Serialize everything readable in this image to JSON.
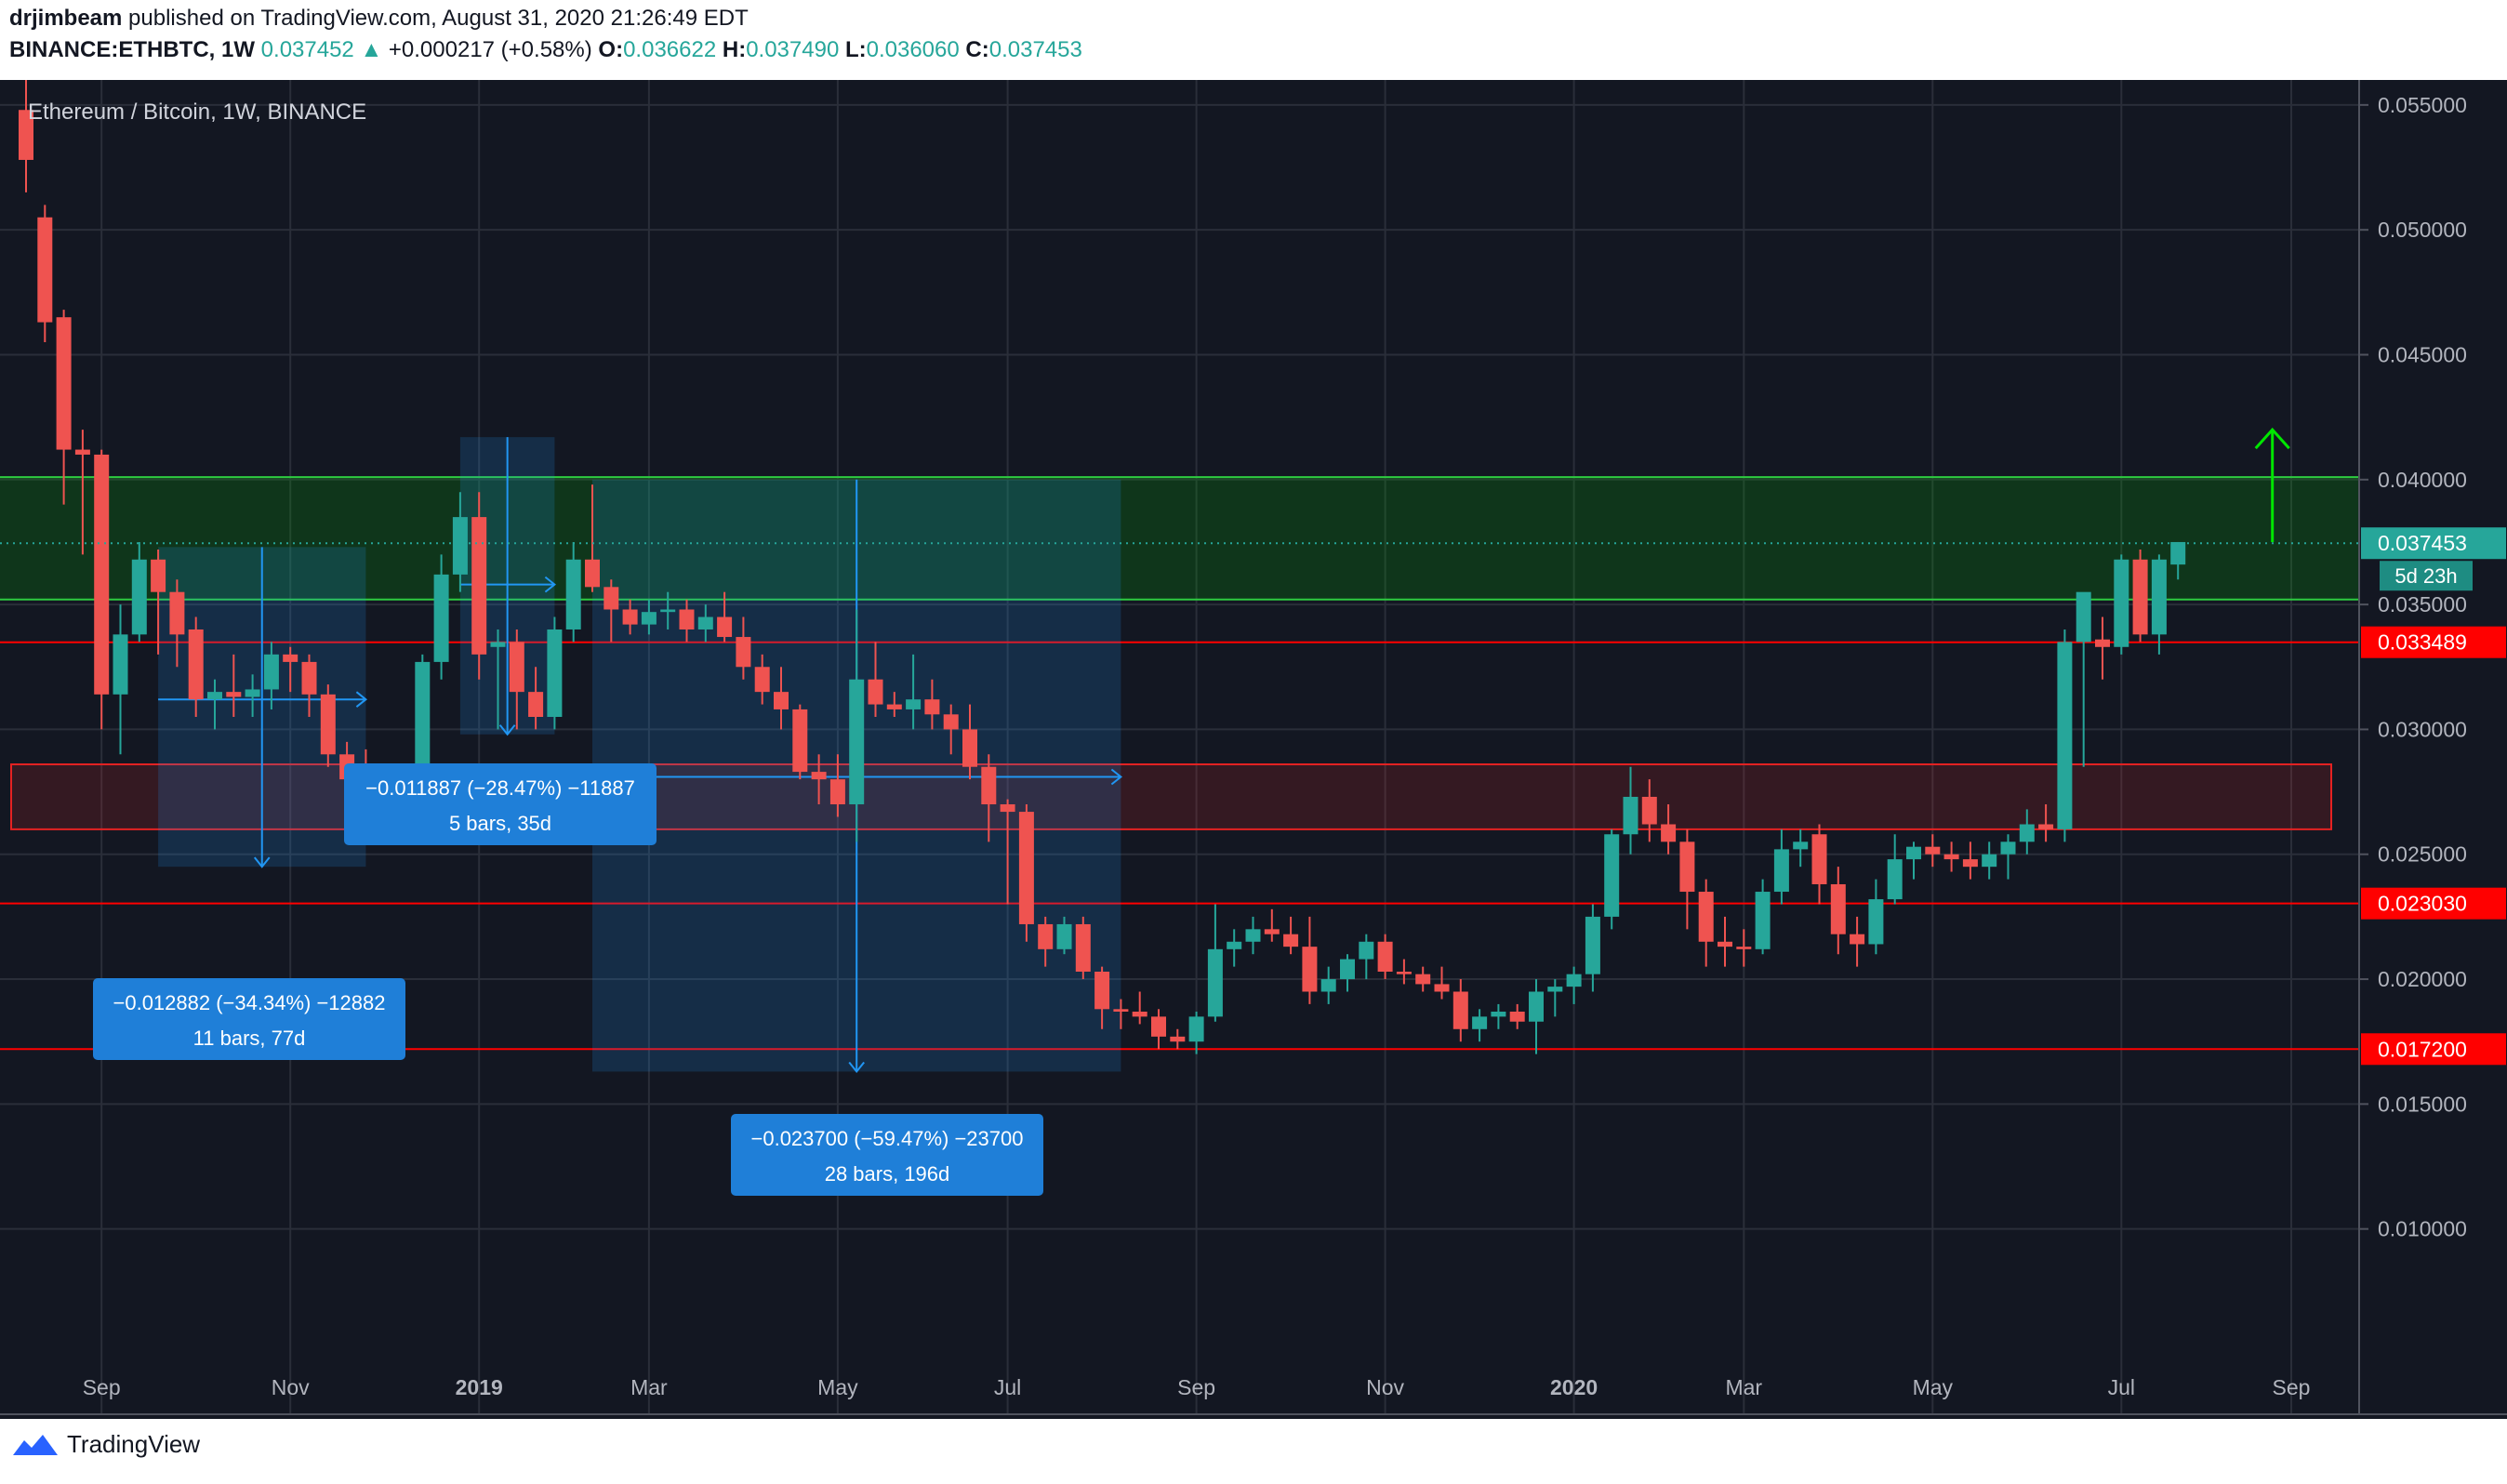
{
  "header": {
    "author": "drjimbeam",
    "published": "published on TradingView.com, August 31, 2020 21:26:49 EDT",
    "symbol": "BINANCE:ETHBTC, 1W",
    "last": "0.037452",
    "change": "+0.000217 (+0.58%)",
    "o_label": "O:",
    "o": "0.036622",
    "h_label": "H:",
    "h": "0.037490",
    "l_label": "L:",
    "l": "0.036060",
    "c_label": "C:",
    "c": "0.037453"
  },
  "legend_title": "Ethereum / Bitcoin, 1W, BINANCE",
  "brand": "TradingView",
  "colors": {
    "bg": "#131722",
    "up": "#26a69a",
    "down": "#ef5350",
    "support": "#ff0000",
    "zone": "#00c800",
    "measure": "#2196f3"
  },
  "chart_data": {
    "type": "candlestick",
    "title": "Ethereum / Bitcoin, 1W, BINANCE",
    "ylim": [
      0.005,
      0.056
    ],
    "y_ticks": [
      "0.055000",
      "0.050000",
      "0.045000",
      "0.040000",
      "0.035000",
      "0.030000",
      "0.025000",
      "0.020000",
      "0.015000",
      "0.010000"
    ],
    "y_tick_values": [
      0.055,
      0.05,
      0.045,
      0.04,
      0.035,
      0.03,
      0.025,
      0.02,
      0.015,
      0.01
    ],
    "x_ticks": [
      {
        "label": "Sep",
        "bar": 4
      },
      {
        "label": "Nov",
        "bar": 14
      },
      {
        "label": "2019",
        "bar": 24
      },
      {
        "label": "Mar",
        "bar": 33
      },
      {
        "label": "May",
        "bar": 43
      },
      {
        "label": "Jul",
        "bar": 52
      },
      {
        "label": "Sep",
        "bar": 62
      },
      {
        "label": "Nov",
        "bar": 72
      },
      {
        "label": "2020",
        "bar": 82
      },
      {
        "label": "Mar",
        "bar": 91
      },
      {
        "label": "May",
        "bar": 101
      },
      {
        "label": "Jul",
        "bar": 111
      },
      {
        "label": "Sep",
        "bar": 120
      }
    ],
    "candles": [
      [
        0.0548,
        0.057,
        0.0515,
        0.0528
      ],
      [
        0.0505,
        0.051,
        0.0455,
        0.0463
      ],
      [
        0.0465,
        0.0468,
        0.039,
        0.0412
      ],
      [
        0.0412,
        0.042,
        0.037,
        0.041
      ],
      [
        0.041,
        0.0412,
        0.03,
        0.0314
      ],
      [
        0.0314,
        0.035,
        0.029,
        0.0338
      ],
      [
        0.0338,
        0.0375,
        0.0335,
        0.0368
      ],
      [
        0.0368,
        0.0372,
        0.033,
        0.0355
      ],
      [
        0.0355,
        0.036,
        0.0325,
        0.0338
      ],
      [
        0.034,
        0.0345,
        0.0305,
        0.0312
      ],
      [
        0.0312,
        0.032,
        0.03,
        0.0315
      ],
      [
        0.0315,
        0.033,
        0.0305,
        0.0313
      ],
      [
        0.0313,
        0.0322,
        0.0305,
        0.0316
      ],
      [
        0.0316,
        0.0335,
        0.0308,
        0.033
      ],
      [
        0.033,
        0.0333,
        0.0315,
        0.0327
      ],
      [
        0.0327,
        0.033,
        0.0305,
        0.0314
      ],
      [
        0.0314,
        0.0318,
        0.0285,
        0.029
      ],
      [
        0.029,
        0.0295,
        0.027,
        0.028
      ],
      [
        0.0285,
        0.0292,
        0.027,
        0.0275
      ],
      [
        0.0275,
        0.028,
        0.0255,
        0.0262
      ],
      [
        0.0262,
        0.0275,
        0.0255,
        0.027
      ],
      [
        0.027,
        0.033,
        0.0265,
        0.0327
      ],
      [
        0.0327,
        0.037,
        0.032,
        0.0362
      ],
      [
        0.0362,
        0.0395,
        0.0355,
        0.0385
      ],
      [
        0.0385,
        0.0395,
        0.032,
        0.033
      ],
      [
        0.0333,
        0.034,
        0.03,
        0.0335
      ],
      [
        0.0335,
        0.034,
        0.03,
        0.0315
      ],
      [
        0.0315,
        0.0325,
        0.03,
        0.0305
      ],
      [
        0.0305,
        0.0345,
        0.03,
        0.034
      ],
      [
        0.034,
        0.0375,
        0.0335,
        0.0368
      ],
      [
        0.0368,
        0.0398,
        0.0355,
        0.0357
      ],
      [
        0.0357,
        0.036,
        0.0335,
        0.0348
      ],
      [
        0.0348,
        0.0352,
        0.0338,
        0.0342
      ],
      [
        0.0342,
        0.0352,
        0.0338,
        0.0347
      ],
      [
        0.0347,
        0.0355,
        0.034,
        0.0348
      ],
      [
        0.0348,
        0.0352,
        0.0335,
        0.034
      ],
      [
        0.034,
        0.035,
        0.0335,
        0.0345
      ],
      [
        0.0345,
        0.0355,
        0.0335,
        0.0337
      ],
      [
        0.0337,
        0.0345,
        0.032,
        0.0325
      ],
      [
        0.0325,
        0.033,
        0.031,
        0.0315
      ],
      [
        0.0315,
        0.0325,
        0.03,
        0.0308
      ],
      [
        0.0308,
        0.031,
        0.028,
        0.0283
      ],
      [
        0.0283,
        0.029,
        0.027,
        0.028
      ],
      [
        0.028,
        0.029,
        0.0265,
        0.027
      ],
      [
        0.027,
        0.0348,
        0.0255,
        0.032
      ],
      [
        0.032,
        0.0335,
        0.0305,
        0.031
      ],
      [
        0.031,
        0.0315,
        0.0305,
        0.0308
      ],
      [
        0.0308,
        0.033,
        0.03,
        0.0312
      ],
      [
        0.0312,
        0.032,
        0.03,
        0.0306
      ],
      [
        0.0306,
        0.031,
        0.029,
        0.03
      ],
      [
        0.03,
        0.031,
        0.028,
        0.0285
      ],
      [
        0.0285,
        0.029,
        0.0255,
        0.027
      ],
      [
        0.027,
        0.0272,
        0.023,
        0.0267
      ],
      [
        0.0267,
        0.027,
        0.0215,
        0.0222
      ],
      [
        0.0222,
        0.0225,
        0.0205,
        0.0212
      ],
      [
        0.0212,
        0.0225,
        0.021,
        0.0222
      ],
      [
        0.0222,
        0.0225,
        0.02,
        0.0203
      ],
      [
        0.0203,
        0.0205,
        0.018,
        0.0188
      ],
      [
        0.0188,
        0.0192,
        0.018,
        0.0187
      ],
      [
        0.0187,
        0.0195,
        0.0182,
        0.0185
      ],
      [
        0.0185,
        0.0188,
        0.0172,
        0.0177
      ],
      [
        0.0177,
        0.018,
        0.0172,
        0.0175
      ],
      [
        0.0175,
        0.0187,
        0.017,
        0.0185
      ],
      [
        0.0185,
        0.023,
        0.0183,
        0.0212
      ],
      [
        0.0212,
        0.022,
        0.0205,
        0.0215
      ],
      [
        0.0215,
        0.0225,
        0.021,
        0.022
      ],
      [
        0.022,
        0.0228,
        0.0215,
        0.0218
      ],
      [
        0.0218,
        0.0225,
        0.021,
        0.0213
      ],
      [
        0.0213,
        0.0225,
        0.019,
        0.0195
      ],
      [
        0.0195,
        0.0205,
        0.019,
        0.02
      ],
      [
        0.02,
        0.021,
        0.0195,
        0.0208
      ],
      [
        0.0208,
        0.0218,
        0.02,
        0.0215
      ],
      [
        0.0215,
        0.0218,
        0.02,
        0.0203
      ],
      [
        0.0203,
        0.0208,
        0.0198,
        0.0202
      ],
      [
        0.0202,
        0.0205,
        0.0195,
        0.0198
      ],
      [
        0.0198,
        0.0205,
        0.0192,
        0.0195
      ],
      [
        0.0195,
        0.02,
        0.0175,
        0.018
      ],
      [
        0.018,
        0.0188,
        0.0175,
        0.0185
      ],
      [
        0.0185,
        0.019,
        0.018,
        0.0187
      ],
      [
        0.0187,
        0.019,
        0.018,
        0.0183
      ],
      [
        0.0183,
        0.02,
        0.017,
        0.0195
      ],
      [
        0.0195,
        0.02,
        0.0185,
        0.0197
      ],
      [
        0.0197,
        0.0205,
        0.019,
        0.0202
      ],
      [
        0.0202,
        0.023,
        0.0195,
        0.0225
      ],
      [
        0.0225,
        0.026,
        0.022,
        0.0258
      ],
      [
        0.0258,
        0.0285,
        0.025,
        0.0273
      ],
      [
        0.0273,
        0.028,
        0.0255,
        0.0262
      ],
      [
        0.0262,
        0.027,
        0.025,
        0.0255
      ],
      [
        0.0255,
        0.026,
        0.022,
        0.0235
      ],
      [
        0.0235,
        0.024,
        0.0205,
        0.0215
      ],
      [
        0.0215,
        0.0225,
        0.0205,
        0.0213
      ],
      [
        0.0213,
        0.022,
        0.0205,
        0.0212
      ],
      [
        0.0212,
        0.024,
        0.021,
        0.0235
      ],
      [
        0.0235,
        0.026,
        0.023,
        0.0252
      ],
      [
        0.0252,
        0.026,
        0.0245,
        0.0255
      ],
      [
        0.0258,
        0.0262,
        0.023,
        0.0238
      ],
      [
        0.0238,
        0.0245,
        0.021,
        0.0218
      ],
      [
        0.0218,
        0.0225,
        0.0205,
        0.0214
      ],
      [
        0.0214,
        0.024,
        0.021,
        0.0232
      ],
      [
        0.0232,
        0.0258,
        0.023,
        0.0248
      ],
      [
        0.0248,
        0.0255,
        0.024,
        0.0253
      ],
      [
        0.0253,
        0.0258,
        0.0245,
        0.025
      ],
      [
        0.025,
        0.0255,
        0.0243,
        0.0248
      ],
      [
        0.0248,
        0.0255,
        0.024,
        0.0245
      ],
      [
        0.0245,
        0.0255,
        0.024,
        0.025
      ],
      [
        0.025,
        0.0258,
        0.024,
        0.0255
      ],
      [
        0.0255,
        0.0268,
        0.025,
        0.0262
      ],
      [
        0.0262,
        0.027,
        0.0255,
        0.026
      ],
      [
        0.026,
        0.034,
        0.0255,
        0.0335
      ],
      [
        0.0335,
        0.035,
        0.0285,
        0.0355
      ],
      [
        0.0336,
        0.0345,
        0.032,
        0.0333
      ],
      [
        0.0333,
        0.037,
        0.033,
        0.0368
      ],
      [
        0.0368,
        0.0372,
        0.0335,
        0.0338
      ],
      [
        0.0338,
        0.037,
        0.033,
        0.0368
      ],
      [
        0.0366,
        0.0375,
        0.036,
        0.0375
      ]
    ],
    "support_lines": [
      {
        "value": 0.033489,
        "label": "0.033489"
      },
      {
        "value": 0.02303,
        "label": "0.023030"
      },
      {
        "value": 0.0172,
        "label": "0.017200"
      }
    ],
    "current_price": {
      "value": 0.037453,
      "label": "0.037453",
      "countdown": "5d 23h"
    },
    "green_zone": [
      0.0352,
      0.0401
    ],
    "red_zone": [
      0.026,
      0.0286
    ],
    "target_arrow": {
      "bar": 119,
      "from": 0.0375,
      "to": 0.042
    },
    "measures": [
      {
        "from_bar": 7,
        "to_bar": 18,
        "start": 0.0373,
        "end": 0.0245,
        "line": 0.0312,
        "label": "−0.012882 (−34.34%) −12882",
        "sub": "11 bars, 77d"
      },
      {
        "from_bar": 23,
        "to_bar": 28,
        "start": 0.0417,
        "end": 0.0298,
        "line": 0.0358,
        "label": "−0.011887 (−28.47%) −11887",
        "sub": "5 bars, 35d"
      },
      {
        "from_bar": 30,
        "to_bar": 58,
        "start": 0.04,
        "end": 0.0163,
        "line": 0.0281,
        "label": "−0.023700 (−59.47%) −23700",
        "sub": "28 bars, 196d"
      }
    ]
  }
}
